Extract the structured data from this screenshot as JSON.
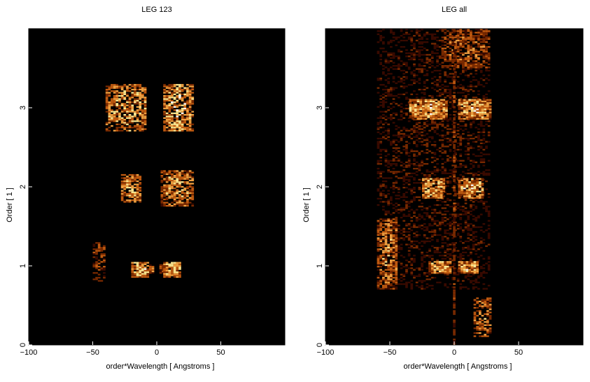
{
  "figure": {
    "background": "#ffffff",
    "plot_background": "#000000",
    "colormap": [
      "#000000",
      "#3a0a00",
      "#7a2a00",
      "#c05a10",
      "#f0a040",
      "#ffe890",
      "#ffffff"
    ]
  },
  "chart_data": [
    {
      "type": "heatmap",
      "title": "LEG 123",
      "xlabel": "order*Wavelength [ Angstroms ]",
      "ylabel": "Order [ 1 ]",
      "xlim": [
        -100,
        100
      ],
      "ylim": [
        0,
        4
      ],
      "xticks": [
        -100,
        -50,
        0,
        50
      ],
      "yticks": [
        0,
        1,
        2,
        3
      ],
      "grid": false,
      "legend": "none",
      "blobs": [
        {
          "x": [
            -50,
            -40
          ],
          "y": [
            0.8,
            1.3
          ],
          "level": 0.6,
          "density": 0.5
        },
        {
          "x": [
            -20,
            -6
          ],
          "y": [
            0.85,
            1.05
          ],
          "level": 1.0,
          "density": 0.95
        },
        {
          "x": [
            -6,
            -2
          ],
          "y": [
            0.9,
            1.02
          ],
          "level": 0.7,
          "density": 0.9
        },
        {
          "x": [
            2,
            8
          ],
          "y": [
            0.9,
            1.02
          ],
          "level": 0.7,
          "density": 0.9
        },
        {
          "x": [
            5,
            18
          ],
          "y": [
            0.85,
            1.05
          ],
          "level": 1.0,
          "density": 0.95
        },
        {
          "x": [
            -28,
            -12
          ],
          "y": [
            1.8,
            2.15
          ],
          "level": 0.9,
          "density": 0.8
        },
        {
          "x": [
            3,
            28
          ],
          "y": [
            1.75,
            2.2
          ],
          "level": 0.9,
          "density": 0.75
        },
        {
          "x": [
            -40,
            -8
          ],
          "y": [
            2.7,
            3.3
          ],
          "level": 0.95,
          "density": 0.7
        },
        {
          "x": [
            5,
            28
          ],
          "y": [
            2.7,
            3.3
          ],
          "level": 1.0,
          "density": 0.8
        }
      ]
    },
    {
      "type": "heatmap",
      "title": "LEG all",
      "xlabel": "order*Wavelength [ Angstroms ]",
      "ylabel": "Order [ 1 ]",
      "xlim": [
        -100,
        100
      ],
      "ylim": [
        0,
        4
      ],
      "xticks": [
        -100,
        -50,
        0,
        50
      ],
      "yticks": [
        0,
        1,
        2,
        3
      ],
      "grid": false,
      "legend": "none",
      "blobs": [
        {
          "x": [
            -60,
            28
          ],
          "y": [
            0.7,
            4.0
          ],
          "level": 0.35,
          "density": 0.35
        },
        {
          "x": [
            -60,
            -45
          ],
          "y": [
            0.7,
            1.6
          ],
          "level": 0.8,
          "density": 0.7
        },
        {
          "x": [
            -20,
            -3
          ],
          "y": [
            0.9,
            1.05
          ],
          "level": 1.0,
          "density": 0.95
        },
        {
          "x": [
            3,
            18
          ],
          "y": [
            0.9,
            1.05
          ],
          "level": 1.0,
          "density": 0.95
        },
        {
          "x": [
            -25,
            -8
          ],
          "y": [
            1.85,
            2.1
          ],
          "level": 1.0,
          "density": 0.9
        },
        {
          "x": [
            3,
            22
          ],
          "y": [
            1.85,
            2.1
          ],
          "level": 1.0,
          "density": 0.9
        },
        {
          "x": [
            -35,
            -5
          ],
          "y": [
            2.85,
            3.1
          ],
          "level": 1.0,
          "density": 0.9
        },
        {
          "x": [
            3,
            28
          ],
          "y": [
            2.85,
            3.1
          ],
          "level": 1.0,
          "density": 0.9
        },
        {
          "x": [
            -10,
            28
          ],
          "y": [
            3.5,
            4.0
          ],
          "level": 0.7,
          "density": 0.6
        },
        {
          "x": [
            15,
            28
          ],
          "y": [
            0.1,
            0.6
          ],
          "level": 0.8,
          "density": 0.6
        },
        {
          "x": [
            -1,
            1
          ],
          "y": [
            0.0,
            4.0
          ],
          "level": 0.6,
          "density": 0.7
        }
      ]
    }
  ]
}
